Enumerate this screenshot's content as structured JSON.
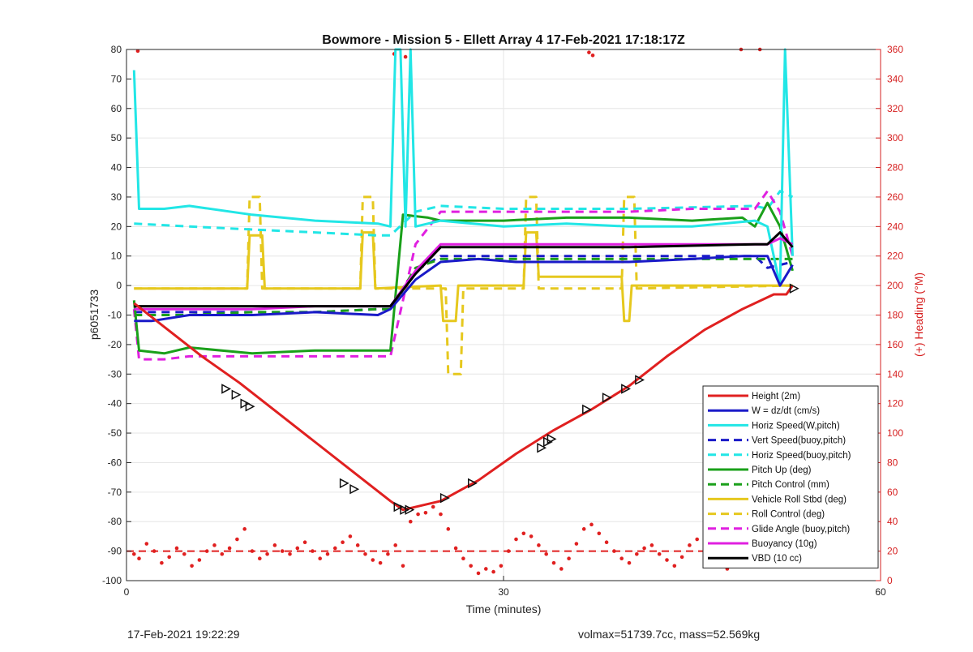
{
  "chart_data": {
    "type": "line",
    "title": "Bowmore - Mission 5 - Ellett Array 4 17-Feb-2021 17:18:17Z",
    "xlabel": "Time (minutes)",
    "ylabel": "p6051733",
    "y2label": "(+) Heading (°M)",
    "xlim": [
      0,
      60
    ],
    "ylim": [
      -100,
      80
    ],
    "y2lim": [
      0,
      360
    ],
    "xticks": [
      0,
      30,
      60
    ],
    "yticks": [
      -100,
      -90,
      -80,
      -70,
      -60,
      -50,
      -40,
      -30,
      -20,
      -10,
      0,
      10,
      20,
      30,
      40,
      50,
      60,
      70,
      80
    ],
    "y2ticks": [
      0,
      20,
      40,
      60,
      80,
      100,
      120,
      140,
      160,
      180,
      200,
      220,
      240,
      260,
      280,
      300,
      320,
      340,
      360
    ],
    "grid": true,
    "legend_position": "bottom-right",
    "colors": {
      "axis": "#262626",
      "right_axis": "#d62020",
      "grid": "#e6e6e6"
    },
    "series": [
      {
        "name": "Height (2m)",
        "color": "#e02020",
        "style": "solid",
        "x": [
          0.6,
          3,
          6,
          9,
          12,
          15,
          18,
          21,
          22,
          25,
          28,
          31,
          34,
          37,
          40,
          43,
          46,
          49,
          51.5,
          52.5,
          53
        ],
        "y": [
          -6,
          -14,
          -24,
          -33,
          -43,
          -53,
          -63,
          -73,
          -76,
          -73,
          -66,
          -57,
          -49,
          -42,
          -34,
          -24,
          -15,
          -8,
          -3,
          -3,
          0
        ]
      },
      {
        "name": "W = dz/dt (cm/s)",
        "color": "#1a1ac8",
        "style": "solid",
        "x": [
          0.6,
          2,
          5,
          10,
          15,
          20,
          21,
          23,
          25,
          28,
          31,
          35,
          40,
          45,
          49,
          51,
          52,
          53
        ],
        "y": [
          -12,
          -12,
          -10,
          -10,
          -9,
          -10,
          -8,
          2,
          8,
          9,
          8,
          8,
          8,
          9,
          10,
          10,
          0,
          7
        ]
      },
      {
        "name": "Horiz Speed(W,pitch)",
        "color": "#22e6e6",
        "style": "solid",
        "x": [
          0.6,
          1,
          3,
          5,
          10,
          15,
          20,
          21,
          21.4,
          21.8,
          22.2,
          22.6,
          23,
          25,
          30,
          35,
          40,
          45,
          50,
          51,
          52,
          52.4,
          53
        ],
        "y": [
          73,
          26,
          26,
          27,
          24,
          22,
          21,
          20,
          80,
          80,
          20,
          80,
          20,
          22,
          20,
          21,
          20,
          20,
          22,
          20,
          0,
          80,
          10
        ]
      },
      {
        "name": "Vert Speed(buoy,pitch)",
        "color": "#1a1ac8",
        "style": "dashed",
        "x": [
          0.6,
          5,
          10,
          15,
          20,
          21,
          23,
          25,
          30,
          40,
          50,
          51,
          53
        ],
        "y": [
          -9,
          -9,
          -9,
          -9,
          -8,
          -8,
          5,
          10,
          10,
          10,
          10,
          6,
          8
        ]
      },
      {
        "name": "Horiz Speed(buoy,pitch)",
        "color": "#22e6e6",
        "style": "dashed",
        "x": [
          0.6,
          5,
          10,
          15,
          20,
          21,
          23,
          25,
          30,
          40,
          50,
          51,
          52,
          53
        ],
        "y": [
          21,
          20,
          19,
          18,
          17,
          17,
          25,
          27,
          26,
          26,
          27,
          26,
          32,
          30
        ]
      },
      {
        "name": "Pitch Up (deg)",
        "color": "#1aa01a",
        "style": "solid",
        "x": [
          0.6,
          1,
          3,
          5,
          10,
          15,
          20,
          21,
          22,
          24,
          25,
          30,
          35,
          40,
          45,
          49,
          50,
          51,
          52,
          53
        ],
        "y": [
          -5,
          -22,
          -23,
          -21,
          -23,
          -22,
          -22,
          -22,
          24,
          23,
          22,
          22,
          23,
          23,
          22,
          23,
          20,
          28,
          20,
          5
        ]
      },
      {
        "name": "Pitch Control (mm)",
        "color": "#1aa01a",
        "style": "dashed",
        "x": [
          0.6,
          5,
          10,
          15,
          20,
          21,
          23,
          25,
          30,
          40,
          50,
          53
        ],
        "y": [
          -10,
          -10,
          -9,
          -9,
          -8,
          -8,
          6,
          9,
          9,
          9,
          9,
          9
        ]
      },
      {
        "name": "Vehicle Roll Stbd (deg)",
        "color": "#e6c81e",
        "style": "solid",
        "x": [
          0.6,
          5,
          9.6,
          9.8,
          10.8,
          11,
          18.6,
          18.8,
          19.6,
          19.8,
          25,
          25.2,
          26.2,
          26.4,
          31.6,
          31.8,
          32.6,
          32.8,
          39.4,
          39.6,
          40,
          40.2,
          50,
          52,
          53
        ],
        "y": [
          -1,
          -1,
          -1,
          17,
          17,
          -1,
          -1,
          18,
          18,
          -1,
          0,
          -12,
          -12,
          0,
          0,
          18,
          18,
          3,
          3,
          -12,
          -12,
          0,
          0,
          0,
          0
        ]
      },
      {
        "name": "Roll Control (deg)",
        "color": "#e6c81e",
        "style": "dashed",
        "x": [
          0.6,
          9.6,
          9.8,
          10.6,
          10.8,
          18.6,
          18.8,
          19.6,
          19.8,
          25.4,
          25.6,
          26.6,
          26.8,
          31.6,
          31.8,
          32.6,
          32.8,
          39.4,
          39.6,
          40.4,
          40.6,
          53
        ],
        "y": [
          -1,
          -1,
          30,
          30,
          -1,
          -1,
          30,
          30,
          -1,
          -1,
          -30,
          -30,
          -1,
          -1,
          30,
          30,
          -1,
          -1,
          30,
          30,
          -1,
          0
        ]
      },
      {
        "name": "Glide Angle (buoy,pitch)",
        "color": "#e020e0",
        "style": "dashed",
        "x": [
          0.6,
          1,
          3,
          5,
          10,
          15,
          20,
          21,
          23,
          25,
          30,
          35,
          40,
          45,
          50,
          51,
          52,
          53
        ],
        "y": [
          -8,
          -25,
          -25,
          -24,
          -24,
          -24,
          -24,
          -24,
          14,
          25,
          25,
          25,
          25,
          26,
          26,
          32,
          25,
          10
        ]
      },
      {
        "name": "Buoyancy (10g)",
        "color": "#e020e0",
        "style": "solid",
        "x": [
          0.6,
          5,
          10,
          15,
          20,
          21,
          23,
          25,
          30,
          40,
          50,
          51,
          52,
          53
        ],
        "y": [
          -8,
          -8,
          -8,
          -7,
          -7,
          -7,
          5,
          14,
          14,
          14,
          14,
          14,
          16,
          14
        ]
      },
      {
        "name": "VBD (10 cc)",
        "color": "#000000",
        "style": "solid",
        "x": [
          0.6,
          5,
          10,
          15,
          20,
          21,
          23,
          25,
          30,
          40,
          50,
          51,
          52,
          53
        ],
        "y": [
          -7,
          -7,
          -7,
          -7,
          -7,
          -7,
          4,
          13,
          13,
          13,
          14,
          14,
          18,
          13
        ]
      }
    ],
    "heading_reference": {
      "y2": 20,
      "color": "#e02020",
      "style": "dashed"
    },
    "heading_points": {
      "color": "#e02020",
      "x": [
        0.6,
        1.0,
        1.6,
        2.2,
        2.8,
        3.4,
        4.0,
        4.6,
        5.2,
        5.8,
        6.4,
        7.0,
        7.6,
        8.2,
        8.8,
        9.4,
        10.0,
        10.6,
        11.2,
        11.8,
        12.4,
        13.0,
        13.6,
        14.2,
        14.8,
        15.4,
        16.0,
        16.6,
        17.2,
        17.8,
        18.4,
        19.0,
        19.6,
        20.2,
        20.8,
        21.4,
        22.0,
        22.6,
        23.2,
        23.8,
        24.4,
        25.0,
        25.6,
        26.2,
        26.8,
        27.4,
        28.0,
        28.6,
        29.2,
        29.8,
        30.4,
        31.0,
        31.6,
        32.2,
        32.8,
        33.4,
        34.0,
        34.6,
        35.2,
        35.8,
        36.4,
        37.0,
        37.6,
        38.2,
        38.8,
        39.4,
        40.0,
        40.6,
        41.2,
        41.8,
        42.4,
        43.0,
        43.6,
        44.2,
        44.8,
        45.4,
        46.0,
        46.6,
        47.2,
        47.8,
        48.4,
        49.0,
        49.6,
        50.2,
        50.8,
        51.4,
        52.0,
        0.9,
        21.3,
        22.2,
        36.8,
        37.1,
        48.9,
        50.4
      ],
      "y2": [
        18,
        15,
        25,
        20,
        12,
        16,
        22,
        18,
        10,
        14,
        20,
        24,
        18,
        22,
        28,
        35,
        20,
        15,
        18,
        24,
        20,
        18,
        22,
        26,
        20,
        15,
        18,
        22,
        26,
        30,
        24,
        18,
        14,
        12,
        18,
        24,
        10,
        40,
        45,
        46,
        50,
        45,
        35,
        22,
        15,
        10,
        5,
        8,
        6,
        10,
        20,
        28,
        32,
        30,
        24,
        18,
        12,
        8,
        15,
        25,
        35,
        38,
        32,
        26,
        20,
        15,
        12,
        18,
        22,
        24,
        18,
        14,
        10,
        16,
        24,
        28,
        22,
        15,
        10,
        8,
        16,
        24,
        30,
        38,
        35,
        22,
        18,
        359,
        357,
        355,
        358,
        356,
        360,
        360
      ]
    },
    "direction_markers": {
      "color": "#111111",
      "x": [
        7.9,
        8.7,
        9.4,
        9.8,
        17.3,
        18.1,
        21.6,
        22.1,
        22.5,
        25.3,
        27.5,
        33.0,
        33.5,
        33.8,
        36.6,
        38.2,
        39.7,
        40.8,
        53.1
      ],
      "y": [
        -35,
        -37,
        -40,
        -41,
        -67,
        -69,
        -75,
        -76,
        -76,
        -72,
        -67,
        -55,
        -53,
        -52,
        -42,
        -38,
        -35,
        -32,
        -1
      ]
    }
  },
  "footer": {
    "date": "17-Feb-2021 19:22:29",
    "mass": "volmax=51739.7cc, mass=52.569kg"
  }
}
